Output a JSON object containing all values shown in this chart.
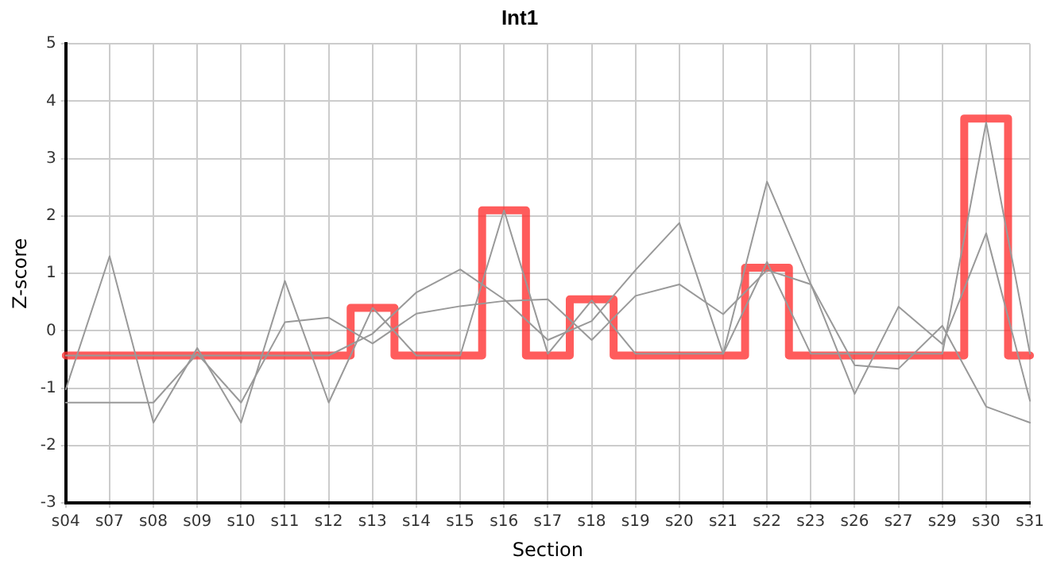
{
  "chart_data": {
    "type": "line",
    "title": "Int1",
    "xlabel": "Section",
    "ylabel": "Z-score",
    "categories": [
      "s04",
      "s07",
      "s08",
      "s09",
      "s10",
      "s11",
      "s12",
      "s13",
      "s14",
      "s15",
      "s16",
      "s17",
      "s18",
      "s19",
      "s20",
      "s21",
      "s22",
      "s23",
      "s26",
      "s27",
      "s29",
      "s30",
      "s31"
    ],
    "series": [
      {
        "color": "#999999",
        "values": [
          -1.02,
          1.3,
          -1.6,
          -0.3,
          -1.6,
          0.87,
          -1.25,
          0.4,
          -0.43,
          -0.43,
          2.1,
          -0.4,
          0.53,
          -0.4,
          -0.4,
          -0.4,
          1.2,
          -0.4,
          -0.4,
          -0.4,
          -0.4,
          3.63,
          -0.4
        ]
      },
      {
        "color": "#999999",
        "values": [
          -1.25,
          -1.25,
          -1.25,
          -0.4,
          -1.25,
          0.15,
          0.23,
          -0.22,
          0.3,
          0.43,
          0.52,
          0.55,
          -0.16,
          0.61,
          0.81,
          0.29,
          1.06,
          0.81,
          -0.6,
          -0.66,
          0.09,
          -1.32,
          -1.6
        ]
      },
      {
        "color": "#999999",
        "values": [
          -0.43,
          -0.43,
          -0.43,
          -0.43,
          -0.43,
          -0.43,
          -0.43,
          -0.05,
          0.67,
          1.07,
          0.55,
          -0.16,
          0.17,
          1.06,
          1.88,
          -0.4,
          2.6,
          0.81,
          -1.1,
          0.42,
          -0.23,
          1.7,
          -1.22
        ]
      },
      {
        "type": "step",
        "color": "#ff3333",
        "values": [
          -0.43,
          -0.43,
          -0.43,
          -0.43,
          -0.43,
          -0.43,
          -0.43,
          0.4,
          -0.43,
          -0.43,
          2.1,
          -0.43,
          0.55,
          -0.43,
          -0.43,
          -0.43,
          1.1,
          -0.43,
          -0.43,
          -0.43,
          -0.43,
          3.7,
          -0.43
        ]
      }
    ],
    "ylim": [
      -3,
      5
    ],
    "yticks": [
      -3,
      -2,
      -1,
      0,
      1,
      2,
      3,
      4,
      5
    ],
    "grid": true,
    "legend": false,
    "marker": "none",
    "line_style": "solid"
  }
}
